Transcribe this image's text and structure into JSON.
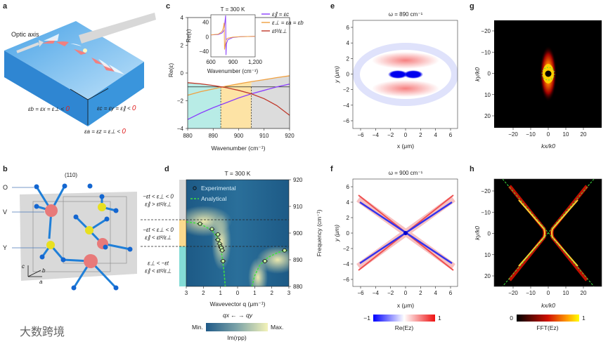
{
  "panels": {
    "a": {
      "label": "a",
      "optic_axis": "Optic axis",
      "eps_b": "εb = εx = ε⊥ < ",
      "eps_c": "εc = εy = ε∥ < ",
      "eps_a": "εa = εz = ε⊥ < ",
      "zero": "0"
    },
    "b": {
      "label": "b",
      "plane": "(110)",
      "atom_o": "O",
      "atom_v": "V",
      "atom_y": "Y",
      "axis_a": "a",
      "axis_b": "b",
      "axis_c": "c"
    },
    "c": {
      "label": "c"
    },
    "d": {
      "label": "d",
      "regions": [
        {
          "line1": "−εt < ε⊥ < 0",
          "line2": "ε∥ > εt²/ε⊥",
          "color": "#d9d9d9"
        },
        {
          "line1": "−εt < ε⊥ < 0",
          "line2": "ε∥ < εt²/ε⊥",
          "color": "#fbd98e"
        },
        {
          "line1": "ε⊥ < −εt",
          "line2": "ε∥ < εt²/ε⊥",
          "color": "#84dcd6"
        }
      ],
      "direction": "qx ← → qy",
      "cbar_min": "Min.",
      "cbar_max": "Max.",
      "cbar_label": "Im(rpp)"
    },
    "e": {
      "label": "e",
      "title": "ω =  890 cm⁻¹",
      "xlabel": "x (μm)",
      "ylabel": "y (μm)",
      "ticks": [
        "−6",
        "−4",
        "−2",
        "0",
        "2",
        "4",
        "6"
      ]
    },
    "f": {
      "label": "f",
      "title": "ω =  900 cm⁻¹",
      "xlabel": "x (μm)",
      "ylabel": "y (μm)",
      "ticks": [
        "−6",
        "−4",
        "−2",
        "0",
        "2",
        "4",
        "6"
      ],
      "cbar_min": "−1",
      "cbar_max": "1",
      "cbar_label": "Re(Ez)"
    },
    "g": {
      "label": "g",
      "xlabel": "kx/k0",
      "ylabel": "ky/k0",
      "xticks": [
        "−20",
        "−10",
        "0",
        "10",
        "20"
      ],
      "yticks": [
        "−20",
        "−10",
        "0",
        "10",
        "20"
      ]
    },
    "h": {
      "label": "h",
      "xlabel": "kx/k0",
      "ylabel": "ky/k0",
      "xticks": [
        "−20",
        "−10",
        "0",
        "10",
        "20"
      ],
      "yticks": [
        "−20",
        "−10",
        "0",
        "10",
        "20"
      ],
      "cbar_min": "0",
      "cbar_max": "1",
      "cbar_label": "FFT(Ez)"
    }
  },
  "watermark": "大数跨境",
  "chart_data": [
    {
      "panel": "c",
      "type": "line",
      "xlabel": "Wavenumber (cm⁻¹)",
      "ylabel": "Re(ε)",
      "xlim": [
        880,
        920
      ],
      "ylim": [
        -4,
        4
      ],
      "xticks": [
        880,
        890,
        900,
        910,
        920
      ],
      "yticks": [
        -4,
        -2,
        0,
        2,
        4
      ],
      "x": [
        880,
        885,
        890,
        895,
        900,
        905,
        910,
        915,
        920
      ],
      "series": [
        {
          "name": "ε∥ = εc",
          "color": "#8a3ffc",
          "values": [
            -3.35,
            -2.9,
            -2.5,
            -2.15,
            -1.8,
            -1.5,
            -1.25,
            -1.0,
            -0.8
          ]
        },
        {
          "name": "ε⊥ = εa = εb",
          "color": "#f0a040",
          "values": [
            -1.6,
            -1.35,
            -1.15,
            -0.95,
            -0.78,
            -0.62,
            -0.48,
            -0.33,
            -0.2
          ]
        },
        {
          "name": "εt²/ε⊥",
          "color": "#c0392b",
          "values": [
            -0.7,
            -0.78,
            -0.9,
            -1.05,
            -1.25,
            -1.5,
            -1.85,
            -2.35,
            -3.05
          ]
        }
      ],
      "reference_line": -1,
      "region_bounds": [
        893,
        905
      ],
      "region_colors": [
        "#b8ece6",
        "#fde3a5",
        "#dcdcdc"
      ],
      "inset": {
        "title": "T = 300 K",
        "xlabel": "Wavenumber (cm⁻¹)",
        "ylabel": "Re(ε)",
        "xlim": [
          600,
          1200
        ],
        "ylim": [
          -55,
          60
        ],
        "xticks": [
          "600",
          "900",
          "1,200"
        ],
        "yticks": [
          40,
          0,
          -40
        ],
        "x": [
          600,
          700,
          750,
          770,
          780,
          785,
          800,
          805,
          810,
          830,
          900,
          1000,
          1200
        ],
        "series": [
          {
            "name": "ε∥",
            "values": [
              5,
              6,
              10,
              15,
              20,
              30,
              58,
              -50,
              -20,
              -8,
              -2,
              0,
              1
            ]
          },
          {
            "name": "ε⊥",
            "values": [
              5,
              7,
              14,
              25,
              38,
              -35,
              -15,
              -10,
              -7,
              -4,
              -1,
              0,
              1
            ]
          }
        ]
      }
    },
    {
      "panel": "d",
      "type": "scatter",
      "title": "T = 300 K",
      "xlabel": "Wavevector q (μm⁻¹)",
      "ylabel": "Frequency (cm⁻¹)",
      "xticks": [
        "3",
        "2",
        "1",
        "0",
        "1",
        "2",
        "3"
      ],
      "ylim": [
        880,
        920
      ],
      "yticks": [
        880,
        890,
        900,
        910,
        920
      ],
      "boundaries": [
        905,
        895
      ],
      "legend": [
        "Experimental",
        "Analytical"
      ],
      "experimental_qx": [
        [
          2.2,
          903.5
        ],
        [
          1.5,
          901.5
        ],
        [
          1.15,
          899.5
        ],
        [
          1.15,
          897.5
        ],
        [
          1.05,
          896
        ],
        [
          1.0,
          895
        ],
        [
          0.95,
          894.5
        ],
        [
          0.9,
          893.5
        ],
        [
          0.85,
          889.5
        ]
      ],
      "experimental_qy": [
        [
          1.6,
          889.5
        ],
        [
          2.75,
          893.5
        ]
      ],
      "analytical_qx": [
        [
          3,
          904.2
        ],
        [
          2.5,
          903.8
        ],
        [
          2,
          902.8
        ],
        [
          1.5,
          901
        ],
        [
          1.2,
          898.5
        ],
        [
          1.0,
          895
        ],
        [
          0.9,
          891
        ],
        [
          0.8,
          886
        ],
        [
          0.72,
          880
        ]
      ],
      "analytical_qy": [
        [
          0.85,
          880
        ],
        [
          1.0,
          884
        ],
        [
          1.3,
          888
        ],
        [
          1.8,
          891
        ],
        [
          2.4,
          892.8
        ],
        [
          3,
          893.6
        ]
      ]
    }
  ]
}
